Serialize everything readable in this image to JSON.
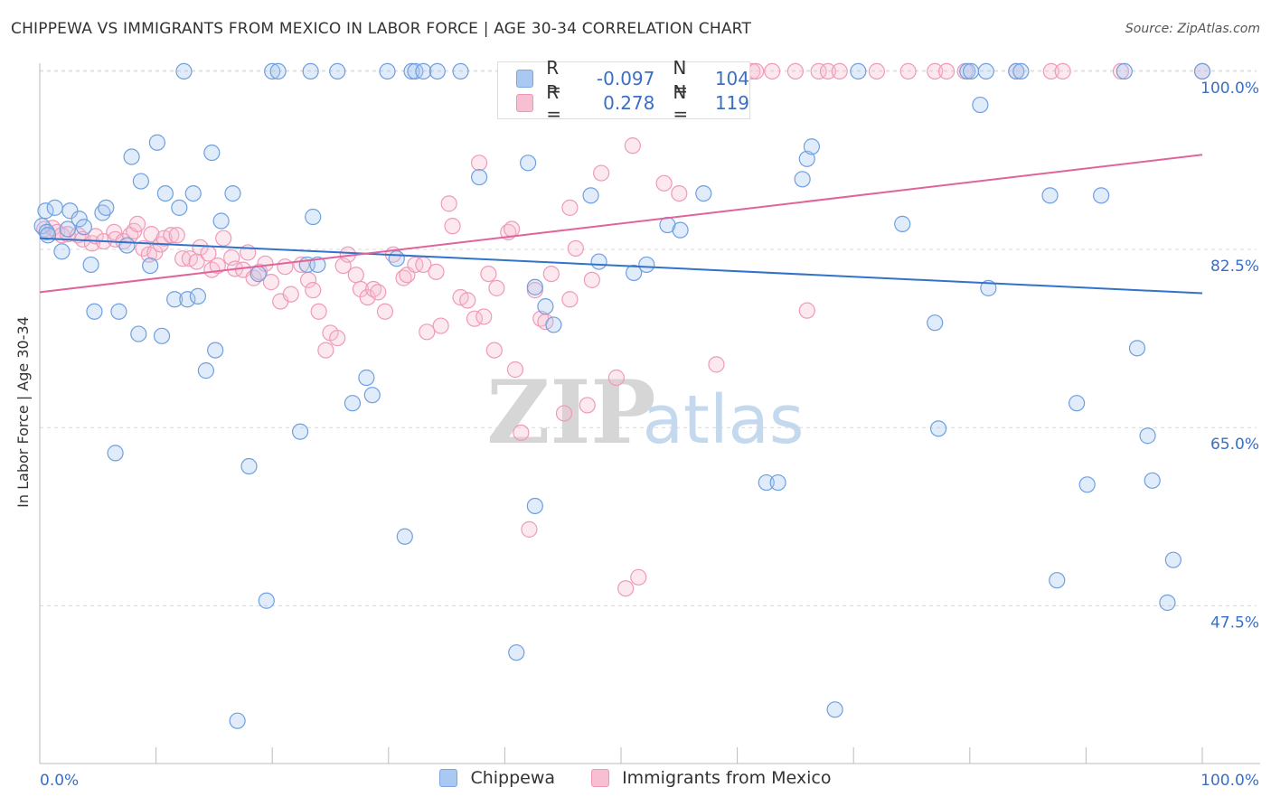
{
  "title": "CHIPPEWA VS IMMIGRANTS FROM MEXICO IN LABOR FORCE | AGE 30-34 CORRELATION CHART",
  "source": "Source: ZipAtlas.com",
  "watermark": {
    "zip": "ZIP",
    "atlas": "atlas"
  },
  "legend": {
    "r_label": "R =",
    "n_label": "N =",
    "rows": [
      {
        "r": "-0.097",
        "n": "104",
        "color": "#a9c8f2",
        "border": "#7aa7e0"
      },
      {
        "r": "0.278",
        "n": "119",
        "color": "#f7bfd1",
        "border": "#ee96b4"
      }
    ]
  },
  "bottom_legend": [
    "Chippewa",
    "Immigrants from Mexico"
  ],
  "chart_data": {
    "type": "scatter",
    "title": "CHIPPEWA VS IMMIGRANTS FROM MEXICO IN LABOR FORCE | AGE 30-34 CORRELATION CHART",
    "xlabel": "",
    "ylabel": "In Labor Force | Age 30-34",
    "xlim": [
      0,
      100
    ],
    "ylim": [
      32,
      101.5
    ],
    "x_tick_labels": [
      "0.0%",
      "100.0%"
    ],
    "y_ticks": [
      47.5,
      65.0,
      82.5,
      100.0
    ],
    "y_tick_labels": [
      "47.5%",
      "65.0%",
      "82.5%",
      "100.0%"
    ],
    "grid": true,
    "legend_position": "top-center",
    "colors": {
      "chippewa": "#6f9fe0",
      "mexico": "#ef8fb0",
      "chippewa_line": "#3173c9",
      "mexico_line": "#e0649a"
    },
    "trendlines": [
      {
        "name": "Chippewa",
        "x": [
          0,
          100
        ],
        "y": [
          83.6,
          78.2
        ]
      },
      {
        "name": "Immigrants from Mexico",
        "x": [
          0,
          100
        ],
        "y": [
          78.3,
          91.8
        ]
      }
    ],
    "series": [
      {
        "name": "Chippewa",
        "points": [
          [
            0.2,
            84.8
          ],
          [
            0.5,
            86.3
          ],
          [
            0.6,
            84.2
          ],
          [
            0.7,
            83.9
          ],
          [
            1.3,
            86.6
          ],
          [
            1.9,
            82.3
          ],
          [
            2.4,
            84.5
          ],
          [
            2.6,
            86.3
          ],
          [
            3.4,
            85.5
          ],
          [
            3.8,
            84.7
          ],
          [
            4.4,
            81.0
          ],
          [
            4.7,
            76.4
          ],
          [
            5.4,
            86.1
          ],
          [
            5.7,
            86.6
          ],
          [
            6.5,
            62.5
          ],
          [
            6.8,
            76.4
          ],
          [
            7.5,
            82.9
          ],
          [
            7.9,
            91.6
          ],
          [
            8.5,
            74.2
          ],
          [
            8.7,
            89.2
          ],
          [
            9.5,
            80.9
          ],
          [
            10.1,
            93.0
          ],
          [
            10.5,
            74.0
          ],
          [
            10.8,
            88.0
          ],
          [
            11.6,
            77.6
          ],
          [
            12.0,
            86.6
          ],
          [
            12.4,
            100.0
          ],
          [
            12.7,
            77.6
          ],
          [
            13.2,
            88.0
          ],
          [
            13.6,
            77.9
          ],
          [
            14.3,
            70.6
          ],
          [
            14.8,
            92.0
          ],
          [
            15.1,
            72.6
          ],
          [
            15.6,
            85.3
          ],
          [
            16.6,
            88.0
          ],
          [
            17.0,
            36.2
          ],
          [
            18.0,
            61.2
          ],
          [
            18.8,
            80.1
          ],
          [
            19.5,
            48.0
          ],
          [
            20.0,
            100.0
          ],
          [
            20.5,
            100.0
          ],
          [
            22.4,
            64.6
          ],
          [
            23.0,
            81.0
          ],
          [
            23.3,
            100.0
          ],
          [
            23.5,
            85.7
          ],
          [
            23.9,
            81.0
          ],
          [
            25.6,
            100.0
          ],
          [
            26.9,
            67.4
          ],
          [
            28.1,
            69.9
          ],
          [
            28.6,
            68.2
          ],
          [
            29.9,
            100.0
          ],
          [
            30.7,
            81.6
          ],
          [
            31.4,
            54.3
          ],
          [
            32.0,
            100.0
          ],
          [
            32.3,
            100.0
          ],
          [
            33.0,
            100.0
          ],
          [
            34.2,
            100.0
          ],
          [
            36.2,
            100.0
          ],
          [
            37.8,
            89.6
          ],
          [
            41.0,
            42.9
          ],
          [
            42.0,
            91.0
          ],
          [
            42.6,
            78.8
          ],
          [
            42.6,
            57.3
          ],
          [
            43.5,
            76.9
          ],
          [
            44.2,
            75.1
          ],
          [
            47.4,
            87.8
          ],
          [
            48.1,
            81.3
          ],
          [
            51.1,
            80.2
          ],
          [
            52.2,
            81.0
          ],
          [
            54.0,
            84.9
          ],
          [
            55.1,
            84.4
          ],
          [
            57.1,
            88.0
          ],
          [
            62.5,
            59.6
          ],
          [
            63.5,
            59.6
          ],
          [
            65.6,
            89.4
          ],
          [
            66.0,
            91.4
          ],
          [
            66.4,
            92.6
          ],
          [
            68.4,
            37.3
          ],
          [
            70.4,
            100.0
          ],
          [
            74.2,
            85.0
          ],
          [
            77.0,
            75.3
          ],
          [
            77.3,
            64.9
          ],
          [
            79.8,
            100.0
          ],
          [
            80.1,
            100.0
          ],
          [
            80.9,
            96.7
          ],
          [
            81.4,
            100.0
          ],
          [
            81.6,
            78.7
          ],
          [
            84.0,
            100.0
          ],
          [
            84.4,
            100.0
          ],
          [
            86.9,
            87.8
          ],
          [
            87.5,
            50.0
          ],
          [
            89.2,
            67.4
          ],
          [
            90.1,
            59.4
          ],
          [
            91.3,
            87.8
          ],
          [
            93.3,
            100.0
          ],
          [
            94.4,
            72.8
          ],
          [
            95.3,
            64.2
          ],
          [
            95.7,
            59.8
          ],
          [
            97.0,
            47.8
          ],
          [
            97.5,
            52.0
          ],
          [
            100.0,
            100.0
          ]
        ]
      },
      {
        "name": "Immigrants from Mexico",
        "points": [
          [
            0.4,
            84.5
          ],
          [
            1.1,
            84.6
          ],
          [
            1.5,
            84.2
          ],
          [
            1.9,
            83.9
          ],
          [
            2.4,
            84.0
          ],
          [
            3.3,
            83.9
          ],
          [
            3.7,
            83.5
          ],
          [
            4.5,
            83.1
          ],
          [
            4.8,
            83.8
          ],
          [
            5.5,
            83.3
          ],
          [
            6.4,
            84.2
          ],
          [
            6.5,
            83.5
          ],
          [
            7.2,
            83.3
          ],
          [
            7.8,
            83.9
          ],
          [
            8.1,
            84.3
          ],
          [
            8.4,
            85.0
          ],
          [
            8.9,
            82.6
          ],
          [
            9.4,
            82.0
          ],
          [
            9.6,
            84.0
          ],
          [
            9.9,
            82.2
          ],
          [
            10.4,
            83.0
          ],
          [
            10.7,
            83.6
          ],
          [
            11.3,
            83.9
          ],
          [
            11.8,
            83.9
          ],
          [
            12.3,
            81.6
          ],
          [
            12.9,
            81.6
          ],
          [
            13.5,
            81.3
          ],
          [
            13.8,
            82.7
          ],
          [
            14.5,
            82.1
          ],
          [
            14.8,
            80.5
          ],
          [
            15.3,
            80.9
          ],
          [
            15.8,
            83.6
          ],
          [
            16.5,
            81.7
          ],
          [
            16.8,
            80.6
          ],
          [
            17.5,
            80.5
          ],
          [
            17.9,
            82.2
          ],
          [
            18.4,
            79.7
          ],
          [
            18.9,
            80.3
          ],
          [
            19.4,
            81.1
          ],
          [
            19.9,
            79.3
          ],
          [
            20.7,
            77.4
          ],
          [
            21.1,
            80.8
          ],
          [
            21.6,
            78.1
          ],
          [
            22.5,
            81.0
          ],
          [
            23.1,
            79.5
          ],
          [
            23.5,
            78.5
          ],
          [
            24.0,
            76.4
          ],
          [
            24.6,
            72.6
          ],
          [
            25.0,
            74.3
          ],
          [
            25.6,
            73.8
          ],
          [
            26.1,
            80.9
          ],
          [
            26.5,
            82.0
          ],
          [
            27.2,
            80.0
          ],
          [
            27.6,
            78.6
          ],
          [
            28.2,
            77.8
          ],
          [
            28.7,
            78.6
          ],
          [
            29.1,
            78.3
          ],
          [
            29.7,
            76.4
          ],
          [
            30.4,
            82.0
          ],
          [
            31.3,
            79.7
          ],
          [
            31.6,
            80.0
          ],
          [
            32.3,
            81.0
          ],
          [
            33.0,
            81.0
          ],
          [
            33.3,
            74.4
          ],
          [
            34.1,
            80.3
          ],
          [
            34.5,
            75.0
          ],
          [
            35.2,
            87.0
          ],
          [
            35.5,
            84.8
          ],
          [
            36.2,
            77.8
          ],
          [
            36.8,
            77.5
          ],
          [
            37.4,
            75.7
          ],
          [
            37.8,
            91.0
          ],
          [
            38.2,
            75.9
          ],
          [
            38.6,
            80.1
          ],
          [
            39.1,
            72.6
          ],
          [
            39.3,
            78.7
          ],
          [
            40.3,
            84.2
          ],
          [
            40.6,
            84.5
          ],
          [
            40.9,
            70.7
          ],
          [
            41.4,
            64.5
          ],
          [
            42.1,
            55.0
          ],
          [
            42.6,
            78.5
          ],
          [
            43.1,
            75.7
          ],
          [
            43.5,
            75.4
          ],
          [
            44.0,
            80.1
          ],
          [
            45.1,
            66.4
          ],
          [
            45.6,
            77.6
          ],
          [
            45.6,
            86.6
          ],
          [
            46.1,
            82.6
          ],
          [
            47.1,
            67.2
          ],
          [
            47.5,
            79.5
          ],
          [
            48.3,
            90.0
          ],
          [
            49.6,
            69.9
          ],
          [
            50.4,
            49.2
          ],
          [
            51.0,
            92.7
          ],
          [
            51.5,
            50.3
          ],
          [
            53.7,
            89.0
          ],
          [
            55.0,
            88.0
          ],
          [
            58.2,
            71.2
          ],
          [
            59.7,
            100.0
          ],
          [
            61.3,
            100.0
          ],
          [
            61.6,
            100.0
          ],
          [
            63.0,
            100.0
          ],
          [
            65.0,
            100.0
          ],
          [
            66.0,
            76.5
          ],
          [
            67.0,
            100.0
          ],
          [
            67.8,
            100.0
          ],
          [
            68.8,
            100.0
          ],
          [
            72.0,
            100.0
          ],
          [
            74.7,
            100.0
          ],
          [
            77.0,
            100.0
          ],
          [
            78.0,
            100.0
          ],
          [
            79.6,
            100.0
          ],
          [
            84.0,
            100.0
          ],
          [
            87.0,
            100.0
          ],
          [
            88.0,
            100.0
          ],
          [
            93.0,
            100.0
          ],
          [
            100.0,
            100.0
          ]
        ]
      }
    ]
  }
}
